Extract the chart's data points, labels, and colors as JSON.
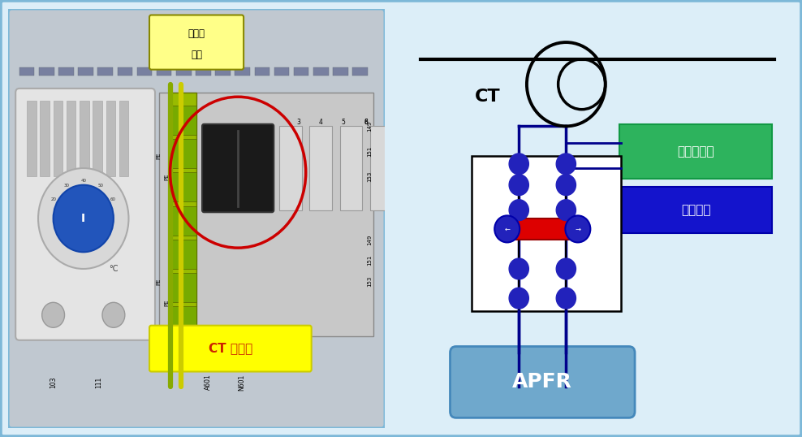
{
  "bg_color": "#dceef8",
  "border_color": "#7db8d8",
  "ct_label": "CT",
  "apfr_label": "APFR",
  "protection_relay_label": "保护继电器",
  "normal_state_label": "正常状态",
  "ct_short_label": "CT 短接片",
  "current_transformer_label_1": "电流互",
  "current_transformer_label_2": "感器",
  "protection_relay_color": "#2db35d",
  "normal_state_color": "#1414cc",
  "apfr_color": "#6fa8cc",
  "line_color": "#00008b",
  "line_width": 2.0,
  "dot_color": "#2222bb",
  "red_bar_color": "#dd0000",
  "circle_highlight": "#cc0000",
  "yellow_label_bg": "#ffff88",
  "ct_short_bg": "#ffff00",
  "ct_short_text": "#cc2200",
  "photo_bg": "#8090a0",
  "panel_bg": "#c0c8d0",
  "thermo_bg": "#e4e4e4",
  "terminal_bg": "#c8c8c8",
  "wire_green": "#88aa00",
  "wire_yellow": "#cccc00"
}
